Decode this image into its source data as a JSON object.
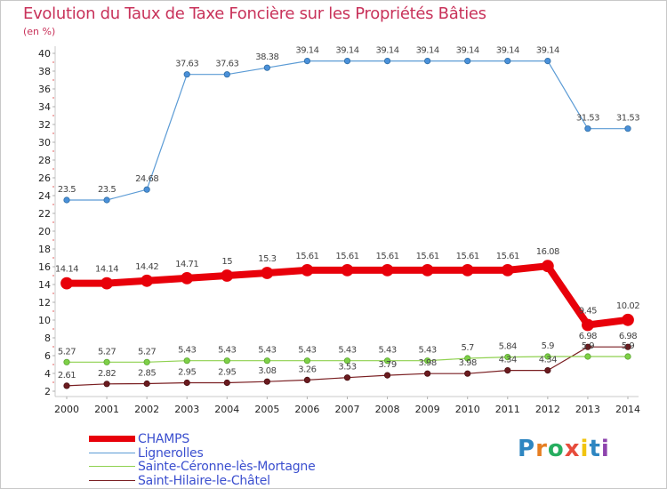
{
  "title": "Evolution du Taux de Taxe Foncière sur les Propriétés Bâties",
  "unit": "(en %)",
  "logo": "Proxiti",
  "chart_data": {
    "type": "line",
    "title": "Evolution du Taux de Taxe Foncière sur les Propriétés Bâties",
    "ylabel": "(en %)",
    "xlabel": "",
    "x": [
      "2000",
      "2001",
      "2002",
      "2003",
      "2004",
      "2005",
      "2006",
      "2007",
      "2008",
      "2009",
      "2010",
      "2011",
      "2012",
      "2013",
      "2014"
    ],
    "ylim": [
      2,
      40
    ],
    "yticks": [
      2,
      4,
      6,
      8,
      10,
      12,
      14,
      16,
      18,
      20,
      22,
      24,
      26,
      28,
      30,
      32,
      34,
      36,
      38,
      40
    ],
    "grid": false,
    "legend_position": "bottom",
    "series": [
      {
        "name": "CHAMPS",
        "color": "#e8000a",
        "values": [
          14.14,
          14.14,
          14.42,
          14.71,
          15,
          15.3,
          15.61,
          15.61,
          15.61,
          15.61,
          15.61,
          15.61,
          16.08,
          9.45,
          10.02
        ],
        "labels": [
          "14.14",
          "14.14",
          "14.42",
          "14.71",
          "15",
          "15.3",
          "15.61",
          "15.61",
          "15.61",
          "15.61",
          "15.61",
          "15.61",
          "16.08",
          "9.45",
          "10.02"
        ]
      },
      {
        "name": "Lignerolles",
        "color": "#5b9bd5",
        "values": [
          23.5,
          23.5,
          24.68,
          37.63,
          37.63,
          38.38,
          39.14,
          39.14,
          39.14,
          39.14,
          39.14,
          39.14,
          39.14,
          31.53,
          31.53
        ],
        "labels": [
          "23.5",
          "23.5",
          "24.68",
          "37.63",
          "37.63",
          "38.38",
          "39.14",
          "39.14",
          "39.14",
          "39.14",
          "39.14",
          "39.14",
          "39.14",
          "31.53",
          "31.53"
        ]
      },
      {
        "name": "Sainte-Céronne-lès-Mortagne",
        "color": "#8fd14f",
        "values": [
          5.27,
          5.27,
          5.27,
          5.43,
          5.43,
          5.43,
          5.43,
          5.43,
          5.43,
          5.43,
          5.7,
          5.84,
          5.9,
          5.9,
          5.9
        ],
        "labels": [
          "5.27",
          "5.27",
          "5.27",
          "5.43",
          "5.43",
          "5.43",
          "5.43",
          "5.43",
          "5.43",
          "5.43",
          "5.7",
          "5.84",
          "5.9",
          "5.9",
          "5.9"
        ]
      },
      {
        "name": "Saint-Hilaire-le-Châtel",
        "color": "#7a1f22",
        "values": [
          2.61,
          2.82,
          2.85,
          2.95,
          2.95,
          3.08,
          3.26,
          3.53,
          3.79,
          3.98,
          3.98,
          4.34,
          4.34,
          6.98,
          6.98
        ],
        "labels": [
          "2.61",
          "2.82",
          "2.85",
          "2.95",
          "2.95",
          "3.08",
          "3.26",
          "3.53",
          "3.79",
          "3.98",
          "3.98",
          "4.34",
          "4.34",
          "6.98",
          "6.98"
        ]
      }
    ]
  }
}
